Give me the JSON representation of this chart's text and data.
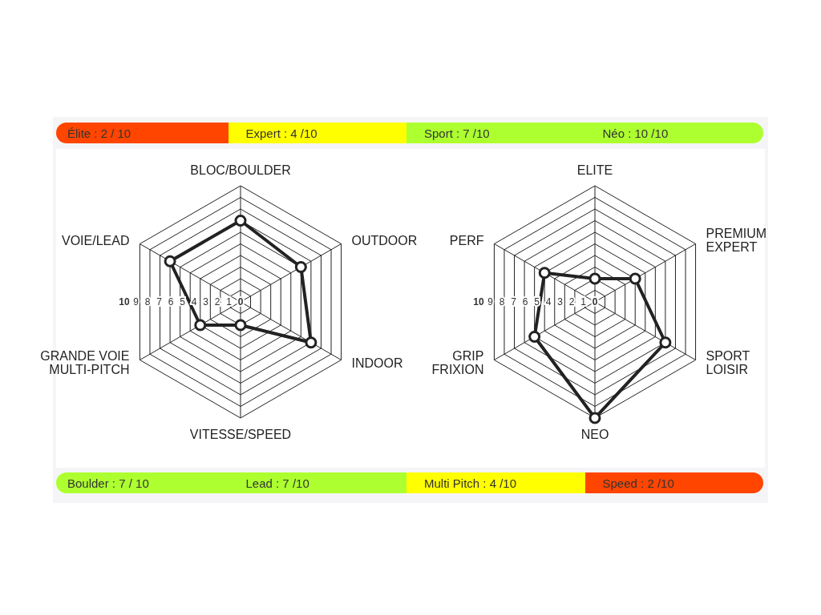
{
  "chart_data": [
    {
      "type": "other",
      "annotations": [
        "Élite : 2 / 10",
        "Expert : 4 /10",
        "Sport : 7 /10",
        "Néo : 10 /10"
      ],
      "colors": [
        "#ff4500",
        "#ffff00",
        "#adff2f",
        "#adff2f"
      ]
    },
    {
      "type": "radar",
      "categories": [
        "BLOC/BOULDER",
        "OUTDOOR",
        "INDOOR",
        "VITESSE/SPEED",
        "GRANDE VOIE\nMULTI-PITCH",
        "VOIE/LEAD"
      ],
      "ylim": [
        0,
        10
      ],
      "yticks": [
        10,
        9,
        8,
        7,
        6,
        5,
        4,
        3,
        2,
        1,
        0
      ],
      "grid": true,
      "marker": "circle",
      "series": [
        {
          "color": "#222222",
          "values": [
            7,
            6,
            7,
            2,
            4,
            7
          ]
        }
      ]
    },
    {
      "type": "radar",
      "categories": [
        "ELITE",
        "PREMIUM\nEXPERT",
        "SPORT\nLOISIR",
        "NEO",
        "GRIP\nFRIXION",
        "PERF"
      ],
      "ylim": [
        0,
        10
      ],
      "yticks": [
        10,
        9,
        8,
        7,
        6,
        5,
        4,
        3,
        2,
        1,
        0
      ],
      "grid": true,
      "marker": "circle",
      "series": [
        {
          "color": "#222222",
          "values": [
            2,
            4,
            7,
            10,
            6,
            5
          ]
        }
      ]
    },
    {
      "type": "other",
      "annotations": [
        "Boulder : 7 / 10",
        "Lead : 7 /10",
        "Multi Pitch : 4 /10",
        "Speed : 2 /10"
      ],
      "colors": [
        "#adff2f",
        "#adff2f",
        "#ffff00",
        "#ff4500"
      ]
    }
  ]
}
